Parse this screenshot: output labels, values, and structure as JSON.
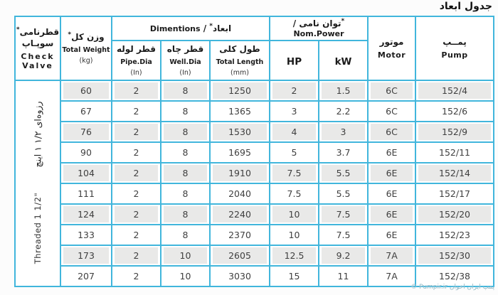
{
  "page": {
    "title": "جدول ابعاد",
    "watermark": {
      "latin": "© Pumpir.ir",
      "persian": "پمپ ایران اخوان"
    }
  },
  "colors": {
    "grid_border": "#41b6dc",
    "row_shade": "#e9e9e8"
  },
  "table": {
    "check_valve": {
      "fa_line1": "قطرنامی",
      "mark": "*",
      "fa_line2": "سوپـاپ",
      "en_line1": "Check",
      "en_line2": "Valve",
      "rotated_fa": "رزوه‌ای ۱/۲ ۱ اینچ",
      "rotated_en": "Threaded 1 1/2\""
    },
    "weight_col": {
      "fa": "وزن کل",
      "mark": "*",
      "en": "Total Weight",
      "unit": "(kg)"
    },
    "groups": {
      "dimensions": {
        "fa": "ابعاد",
        "mark": "*",
        "sep": " / ",
        "en": "Dimentions"
      },
      "power": {
        "fa": "توان نامی",
        "mark": "*",
        "sep": " / ",
        "en": "Nom.Power"
      }
    },
    "sub_columns": {
      "pipe_dia": {
        "fa": "قطر لوله",
        "en": "Pipe.Dia",
        "unit": "(In)"
      },
      "well_dia": {
        "fa": "قطر چاه",
        "en": "Well.Dia",
        "unit": "(In)"
      },
      "total_length": {
        "fa": "طول کلی",
        "en": "Total Length",
        "unit": "(mm)"
      },
      "hp": {
        "label": "HP"
      },
      "kw": {
        "label": "kW"
      }
    },
    "motor_col": {
      "fa": "موتور",
      "en": "Motor"
    },
    "pump_col": {
      "fa": "پمــپ",
      "en": "Pump"
    },
    "rows": [
      {
        "weight": "60",
        "pipe_dia": "2",
        "well_dia": "8",
        "total_length": "1250",
        "hp": "2",
        "kw": "1.5",
        "motor": "6C",
        "pump": "152/4"
      },
      {
        "weight": "67",
        "pipe_dia": "2",
        "well_dia": "8",
        "total_length": "1365",
        "hp": "3",
        "kw": "2.2",
        "motor": "6C",
        "pump": "152/6"
      },
      {
        "weight": "76",
        "pipe_dia": "2",
        "well_dia": "8",
        "total_length": "1530",
        "hp": "4",
        "kw": "3",
        "motor": "6C",
        "pump": "152/9"
      },
      {
        "weight": "90",
        "pipe_dia": "2",
        "well_dia": "8",
        "total_length": "1695",
        "hp": "5",
        "kw": "3.7",
        "motor": "6E",
        "pump": "152/11"
      },
      {
        "weight": "104",
        "pipe_dia": "2",
        "well_dia": "8",
        "total_length": "1910",
        "hp": "7.5",
        "kw": "5.5",
        "motor": "6E",
        "pump": "152/14"
      },
      {
        "weight": "111",
        "pipe_dia": "2",
        "well_dia": "8",
        "total_length": "2040",
        "hp": "7.5",
        "kw": "5.5",
        "motor": "6E",
        "pump": "152/17"
      },
      {
        "weight": "124",
        "pipe_dia": "2",
        "well_dia": "8",
        "total_length": "2240",
        "hp": "10",
        "kw": "7.5",
        "motor": "6E",
        "pump": "152/20"
      },
      {
        "weight": "133",
        "pipe_dia": "2",
        "well_dia": "8",
        "total_length": "2370",
        "hp": "10",
        "kw": "7.5",
        "motor": "6E",
        "pump": "152/23"
      },
      {
        "weight": "173",
        "pipe_dia": "2",
        "well_dia": "10",
        "total_length": "2605",
        "hp": "12.5",
        "kw": "9.2",
        "motor": "7A",
        "pump": "152/30"
      },
      {
        "weight": "207",
        "pipe_dia": "2",
        "well_dia": "10",
        "total_length": "3030",
        "hp": "15",
        "kw": "11",
        "motor": "7A",
        "pump": "152/38"
      }
    ]
  }
}
